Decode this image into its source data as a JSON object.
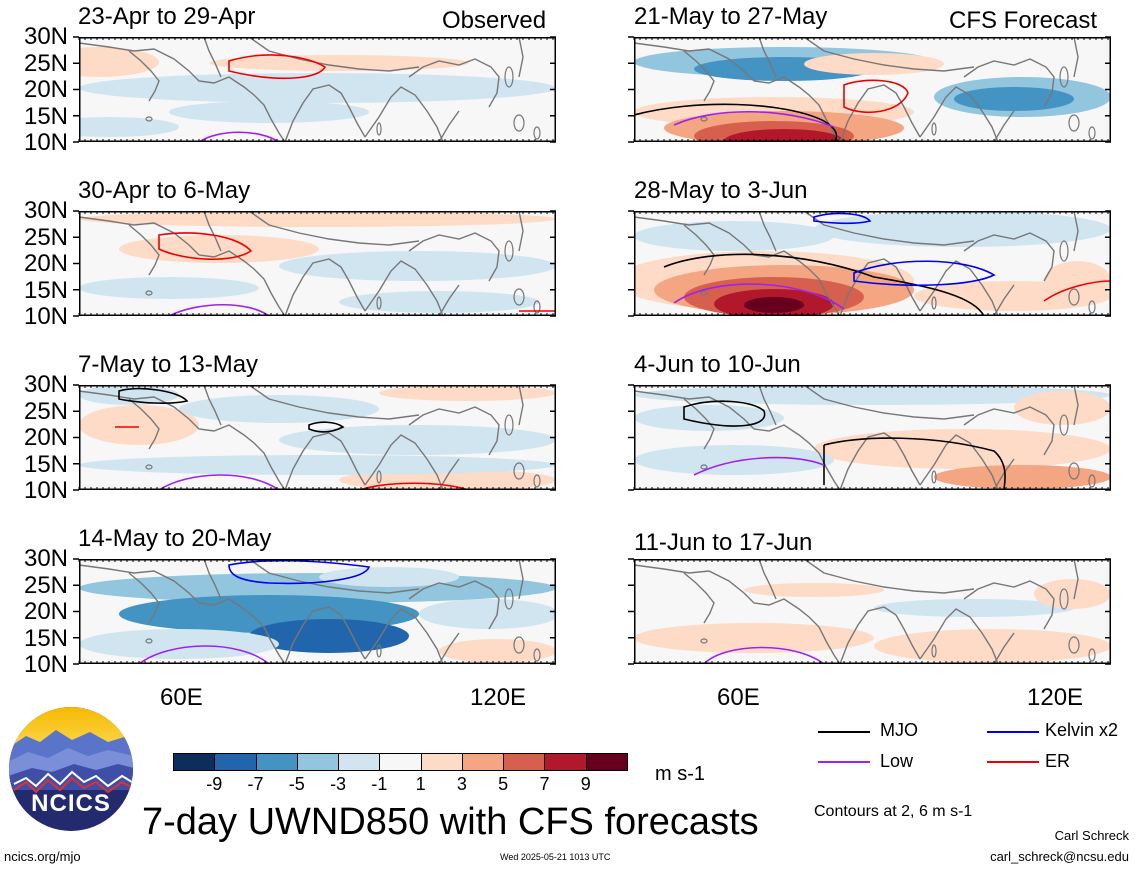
{
  "columns": {
    "left_label": "Observed",
    "right_label": "CFS Forecast"
  },
  "panels": [
    {
      "title": "23-Apr to 29-Apr"
    },
    {
      "title": "30-Apr to 6-May"
    },
    {
      "title": "7-May to 13-May"
    },
    {
      "title": "14-May to 20-May"
    },
    {
      "title": "21-May to 27-May"
    },
    {
      "title": "28-May to 3-Jun"
    },
    {
      "title": "4-Jun to 10-Jun"
    },
    {
      "title": "11-Jun to 17-Jun"
    }
  ],
  "lat_ticks": [
    "30N",
    "25N",
    "20N",
    "15N",
    "10N"
  ],
  "lon_ticks": [
    "60E",
    "120E"
  ],
  "colorbar": {
    "labels": [
      "-9",
      "-7",
      "-5",
      "-3",
      "-1",
      "1",
      "3",
      "5",
      "7",
      "9"
    ],
    "units": "m s-1",
    "colors": [
      "#0b2e5c",
      "#2166ac",
      "#4393c3",
      "#92c5de",
      "#d1e5f0",
      "#f7f7f7",
      "#fddbc7",
      "#f4a582",
      "#d6604d",
      "#b2182b",
      "#67001f"
    ]
  },
  "legend": {
    "items": [
      {
        "label": "MJO",
        "color": "#000000"
      },
      {
        "label": "Kelvin x2",
        "color": "#0000ee"
      },
      {
        "label": "Low",
        "color": "#a020f0"
      },
      {
        "label": "ER",
        "color": "#ee0000"
      }
    ],
    "contour_note": "Contours at 2, 6 m s-1"
  },
  "main_title": "7-day UWND850 with CFS forecasts",
  "logo_text": "NCICS",
  "footer": {
    "url": "ncics.org/mjo",
    "timestamp": "Wed 2025-05-21 1013 UTC",
    "author": "Carl Schreck",
    "email": "carl_schreck@ncsu.edu"
  }
}
